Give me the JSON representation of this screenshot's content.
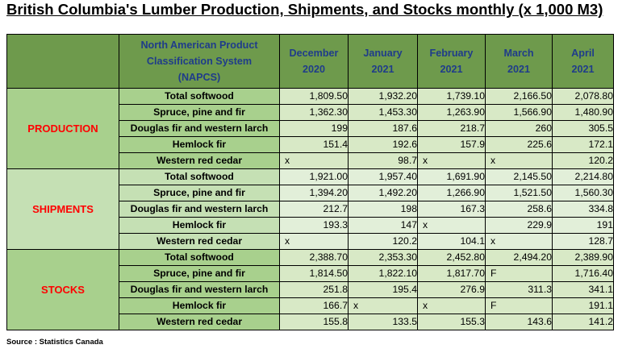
{
  "title": "British Columbia's Lumber Production, Shipments, and Stocks monthly (x 1,000 M3)",
  "header": {
    "napcs_line1": "North American Product",
    "napcs_line2": "Classification System",
    "napcs_line3": "(NAPCS)",
    "months": [
      {
        "name": "December",
        "year": "2020"
      },
      {
        "name": "January",
        "year": "2021"
      },
      {
        "name": "February",
        "year": "2021"
      },
      {
        "name": "March",
        "year": "2021"
      },
      {
        "name": "April",
        "year": "2021"
      }
    ]
  },
  "sections": [
    {
      "name": "PRODUCTION",
      "rows": [
        {
          "label": "Total softwood",
          "values": [
            "1,809.50",
            "1,932.20",
            "1,739.10",
            "2,166.50",
            "2,078.80"
          ]
        },
        {
          "label": "Spruce, pine and fir",
          "values": [
            "1,362.30",
            "1,453.30",
            "1,263.90",
            "1,566.90",
            "1,480.90"
          ]
        },
        {
          "label": "Douglas fir and western larch",
          "values": [
            "199",
            "187.6",
            "218.7",
            "260",
            "305.5"
          ]
        },
        {
          "label": "Hemlock fir",
          "values": [
            "151.4",
            "192.6",
            "157.9",
            "225.6",
            "172.1"
          ]
        },
        {
          "label": "Western red cedar",
          "values": [
            "x",
            "98.7",
            "x",
            "x",
            "120.2"
          ]
        }
      ]
    },
    {
      "name": "SHIPMENTS",
      "rows": [
        {
          "label": "Total softwood",
          "values": [
            "1,921.00",
            "1,957.40",
            "1,691.90",
            "2,145.50",
            "2,214.80"
          ]
        },
        {
          "label": "Spruce, pine and fir",
          "values": [
            "1,394.20",
            "1,492.20",
            "1,266.90",
            "1,521.50",
            "1,560.30"
          ]
        },
        {
          "label": "Douglas fir and western larch",
          "values": [
            "212.7",
            "198",
            "167.3",
            "258.6",
            "334.8"
          ]
        },
        {
          "label": "Hemlock fir",
          "values": [
            "193.3",
            "147",
            "x",
            "229.9",
            "191"
          ]
        },
        {
          "label": "Western red cedar",
          "values": [
            "x",
            "120.2",
            "104.1",
            "x",
            "128.7"
          ]
        }
      ]
    },
    {
      "name": "STOCKS",
      "rows": [
        {
          "label": "Total softwood",
          "values": [
            "2,388.70",
            "2,353.30",
            "2,452.80",
            "2,494.20",
            "2,389.90"
          ]
        },
        {
          "label": "Spruce, pine and fir",
          "values": [
            "1,814.50",
            "1,822.10",
            "1,817.70",
            "F",
            "1,716.40"
          ]
        },
        {
          "label": "Douglas fir and western larch",
          "values": [
            "251.8",
            "195.4",
            "276.9",
            "311.3",
            "341.1"
          ]
        },
        {
          "label": "Hemlock fir",
          "values": [
            "166.7",
            "x",
            "x",
            "F",
            "191.1"
          ]
        },
        {
          "label": "Western red cedar",
          "values": [
            "155.8",
            "133.5",
            "155.3",
            "143.6",
            "141.2"
          ]
        }
      ]
    }
  ],
  "source": "Source : Statistics Canada"
}
